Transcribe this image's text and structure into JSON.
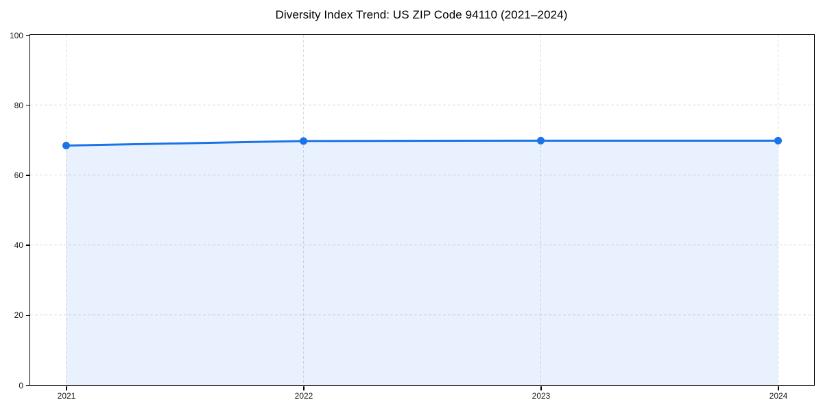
{
  "chart_data": {
    "type": "area",
    "title": "Diversity Index Trend: US ZIP Code 94110 (2021–2024)",
    "categories": [
      "2021",
      "2022",
      "2023",
      "2024"
    ],
    "series": [
      {
        "name": "Diversity Index",
        "values": [
          68.4,
          69.7,
          69.8,
          69.8
        ]
      }
    ],
    "xlabel": "",
    "ylabel": "",
    "ylim": [
      0,
      100
    ],
    "yticks": [
      0,
      20,
      40,
      60,
      80,
      100
    ],
    "grid": "dashed-both",
    "legend": "none",
    "colors": {
      "line": "#1a73e8",
      "marker": "#1a73e8",
      "fill": "#1a73e8",
      "fill_opacity": 0.1,
      "grid": "#dcdcdc",
      "axis": "#000000",
      "tick_label": "#1a1a1a",
      "title": "#000000",
      "background": "#ffffff"
    },
    "marker_radius": 5.5,
    "line_width": 3
  }
}
